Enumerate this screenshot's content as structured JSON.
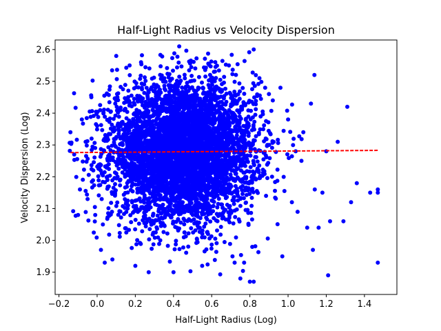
{
  "chart_data": {
    "type": "scatter",
    "title": "Half-Light Radius vs Velocity Dispersion",
    "xlabel": "Half-Light Radius (Log)",
    "ylabel": "Velocity Dispersion (Log)",
    "xlim": [
      -0.22,
      1.57
    ],
    "ylim": [
      1.83,
      2.63
    ],
    "xticks": [
      -0.2,
      0.0,
      0.2,
      0.4,
      0.6,
      0.8,
      1.0,
      1.2,
      1.4
    ],
    "xtick_labels": [
      "−0.2",
      "0.0",
      "0.2",
      "0.4",
      "0.6",
      "0.8",
      "1.0",
      "1.2",
      "1.4"
    ],
    "yticks": [
      1.9,
      2.0,
      2.1,
      2.2,
      2.3,
      2.4,
      2.5,
      2.6
    ],
    "ytick_labels": [
      "1.9",
      "2.0",
      "2.1",
      "2.2",
      "2.3",
      "2.4",
      "2.5",
      "2.6"
    ],
    "grid": false,
    "point_color": "#0000ff",
    "fit_color": "#ff0000",
    "cluster": {
      "x_mean": 0.45,
      "x_sd": 0.19,
      "y_mean": 2.28,
      "y_sd": 0.11,
      "count": 5000
    },
    "fit_line": {
      "x": [
        -0.14,
        1.47
      ],
      "y": [
        2.276,
        2.283
      ],
      "style": "dashed"
    },
    "outliers": [
      {
        "x": -0.14,
        "y": 2.34
      },
      {
        "x": -0.12,
        "y": 2.27
      },
      {
        "x": -0.1,
        "y": 2.08
      },
      {
        "x": -0.09,
        "y": 2.16
      },
      {
        "x": -0.08,
        "y": 2.38
      },
      {
        "x": -0.06,
        "y": 2.31
      },
      {
        "x": -0.05,
        "y": 2.13
      },
      {
        "x": -0.03,
        "y": 2.45
      },
      {
        "x": -0.02,
        "y": 2.22
      },
      {
        "x": -0.01,
        "y": 2.08
      },
      {
        "x": 0.0,
        "y": 2.36
      },
      {
        "x": 0.02,
        "y": 1.97
      },
      {
        "x": 0.03,
        "y": 2.05
      },
      {
        "x": 0.04,
        "y": 1.93
      },
      {
        "x": 0.05,
        "y": 2.46
      },
      {
        "x": 0.08,
        "y": 1.94
      },
      {
        "x": 0.1,
        "y": 2.58
      },
      {
        "x": 0.17,
        "y": 2.55
      },
      {
        "x": 0.2,
        "y": 1.92
      },
      {
        "x": 0.23,
        "y": 2.56
      },
      {
        "x": 0.27,
        "y": 1.9
      },
      {
        "x": 0.43,
        "y": 2.61
      },
      {
        "x": 0.4,
        "y": 1.9
      },
      {
        "x": 0.55,
        "y": 1.92
      },
      {
        "x": 0.69,
        "y": 2.55
      },
      {
        "x": 0.72,
        "y": 1.93
      },
      {
        "x": 0.75,
        "y": 1.88
      },
      {
        "x": 0.77,
        "y": 1.93
      },
      {
        "x": 0.8,
        "y": 1.87
      },
      {
        "x": 0.82,
        "y": 1.87
      },
      {
        "x": 0.82,
        "y": 2.6
      },
      {
        "x": 0.85,
        "y": 2.51
      },
      {
        "x": 0.88,
        "y": 2.48
      },
      {
        "x": 0.9,
        "y": 2.46
      },
      {
        "x": 0.92,
        "y": 2.44
      },
      {
        "x": 0.96,
        "y": 2.48
      },
      {
        "x": 0.97,
        "y": 1.95
      },
      {
        "x": 1.0,
        "y": 2.38
      },
      {
        "x": 1.02,
        "y": 2.12
      },
      {
        "x": 1.04,
        "y": 2.28
      },
      {
        "x": 1.05,
        "y": 2.09
      },
      {
        "x": 1.07,
        "y": 2.25
      },
      {
        "x": 1.08,
        "y": 2.34
      },
      {
        "x": 1.1,
        "y": 2.04
      },
      {
        "x": 1.12,
        "y": 2.43
      },
      {
        "x": 1.13,
        "y": 1.97
      },
      {
        "x": 1.14,
        "y": 2.16
      },
      {
        "x": 1.16,
        "y": 2.04
      },
      {
        "x": 1.18,
        "y": 2.15
      },
      {
        "x": 1.2,
        "y": 2.28
      },
      {
        "x": 1.21,
        "y": 1.89
      },
      {
        "x": 1.22,
        "y": 2.06
      },
      {
        "x": 1.26,
        "y": 2.31
      },
      {
        "x": 1.29,
        "y": 2.06
      },
      {
        "x": 1.31,
        "y": 2.42
      },
      {
        "x": 1.33,
        "y": 2.12
      },
      {
        "x": 1.36,
        "y": 2.18
      },
      {
        "x": 1.43,
        "y": 2.15
      },
      {
        "x": 1.47,
        "y": 2.16
      },
      {
        "x": 1.47,
        "y": 2.15
      },
      {
        "x": 1.47,
        "y": 1.93
      }
    ]
  }
}
